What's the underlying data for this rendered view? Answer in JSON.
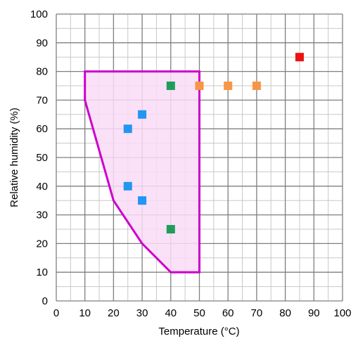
{
  "chart_data": {
    "type": "scatter",
    "xlabel": "Temperature (°C)",
    "ylabel": "Relative humidity  (%)",
    "xlim": [
      0,
      100
    ],
    "ylim": [
      0,
      100
    ],
    "x_ticks": [
      "0",
      "10",
      "20",
      "30",
      "40",
      "50",
      "60",
      "70",
      "80",
      "90",
      "100"
    ],
    "y_ticks": [
      "0",
      "10",
      "20",
      "30",
      "40",
      "50",
      "60",
      "70",
      "80",
      "90",
      "100"
    ],
    "grid": true,
    "region": {
      "border_color": "#cc00cc",
      "fill_color": "#f9dcf6",
      "points": [
        [
          10,
          80
        ],
        [
          50,
          80
        ],
        [
          50,
          10
        ],
        [
          40,
          10
        ],
        [
          30,
          20
        ],
        [
          20,
          35
        ],
        [
          10,
          70
        ]
      ]
    },
    "series": [
      {
        "color": "#2196f3",
        "points": [
          [
            25,
            60
          ],
          [
            30,
            65
          ],
          [
            25,
            40
          ],
          [
            30,
            35
          ]
        ]
      },
      {
        "color": "#1e9e5a",
        "points": [
          [
            40,
            75
          ],
          [
            40,
            25
          ]
        ]
      },
      {
        "color": "#f79646",
        "points": [
          [
            50,
            75
          ],
          [
            60,
            75
          ],
          [
            70,
            75
          ]
        ]
      },
      {
        "color": "#ee1111",
        "points": [
          [
            85,
            85
          ]
        ]
      }
    ]
  }
}
